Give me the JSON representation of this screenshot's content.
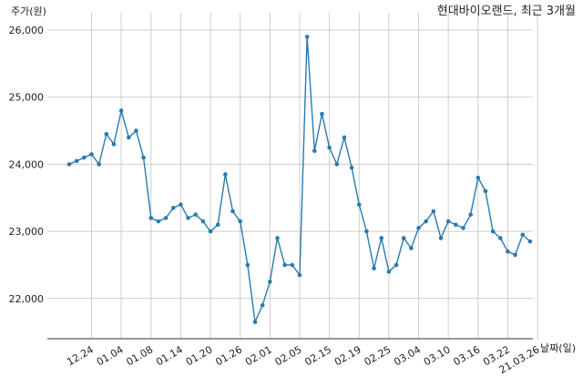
{
  "chart_data": {
    "type": "line",
    "title": "현대바이오랜드, 최근 3개월",
    "xlabel": "날짜(일)",
    "ylabel": "주가(원)",
    "ylim": [
      21400,
      26150
    ],
    "yticks": [
      22000,
      23000,
      24000,
      25000,
      26000
    ],
    "ytick_labels": [
      "22,000",
      "23,000",
      "24,000",
      "25,000",
      "26,000"
    ],
    "x_tick_labels": [
      "12.24",
      "01.04",
      "01.08",
      "01.14",
      "01.20",
      "01.26",
      "02.01",
      "02.05",
      "02.15",
      "02.19",
      "02.25",
      "03.04",
      "03.10",
      "03.16",
      "03.22",
      "21.03.26"
    ],
    "x_tick_index": [
      3,
      7,
      11,
      15,
      19,
      23,
      27,
      31,
      35,
      39,
      43,
      47,
      51,
      55,
      59,
      63
    ],
    "grid": true,
    "series": [
      {
        "color": "#2a7ab0",
        "values": [
          24000,
          24050,
          24100,
          24150,
          24000,
          24450,
          24300,
          24800,
          24400,
          24500,
          24100,
          23200,
          23150,
          23200,
          23350,
          23400,
          23200,
          23250,
          23150,
          23000,
          23100,
          23850,
          23300,
          23150,
          22500,
          21650,
          21900,
          22250,
          22900,
          22500,
          22500,
          22350,
          25900,
          24200,
          24750,
          24250,
          24000,
          24400,
          23950,
          23400,
          23000,
          22450,
          22900,
          22400,
          22500,
          22900,
          22750,
          23050,
          23150,
          23300,
          22900,
          23150,
          23100,
          23050,
          23250,
          23800,
          23600,
          23000,
          22900,
          22700,
          22650,
          22950,
          22850
        ]
      }
    ]
  }
}
